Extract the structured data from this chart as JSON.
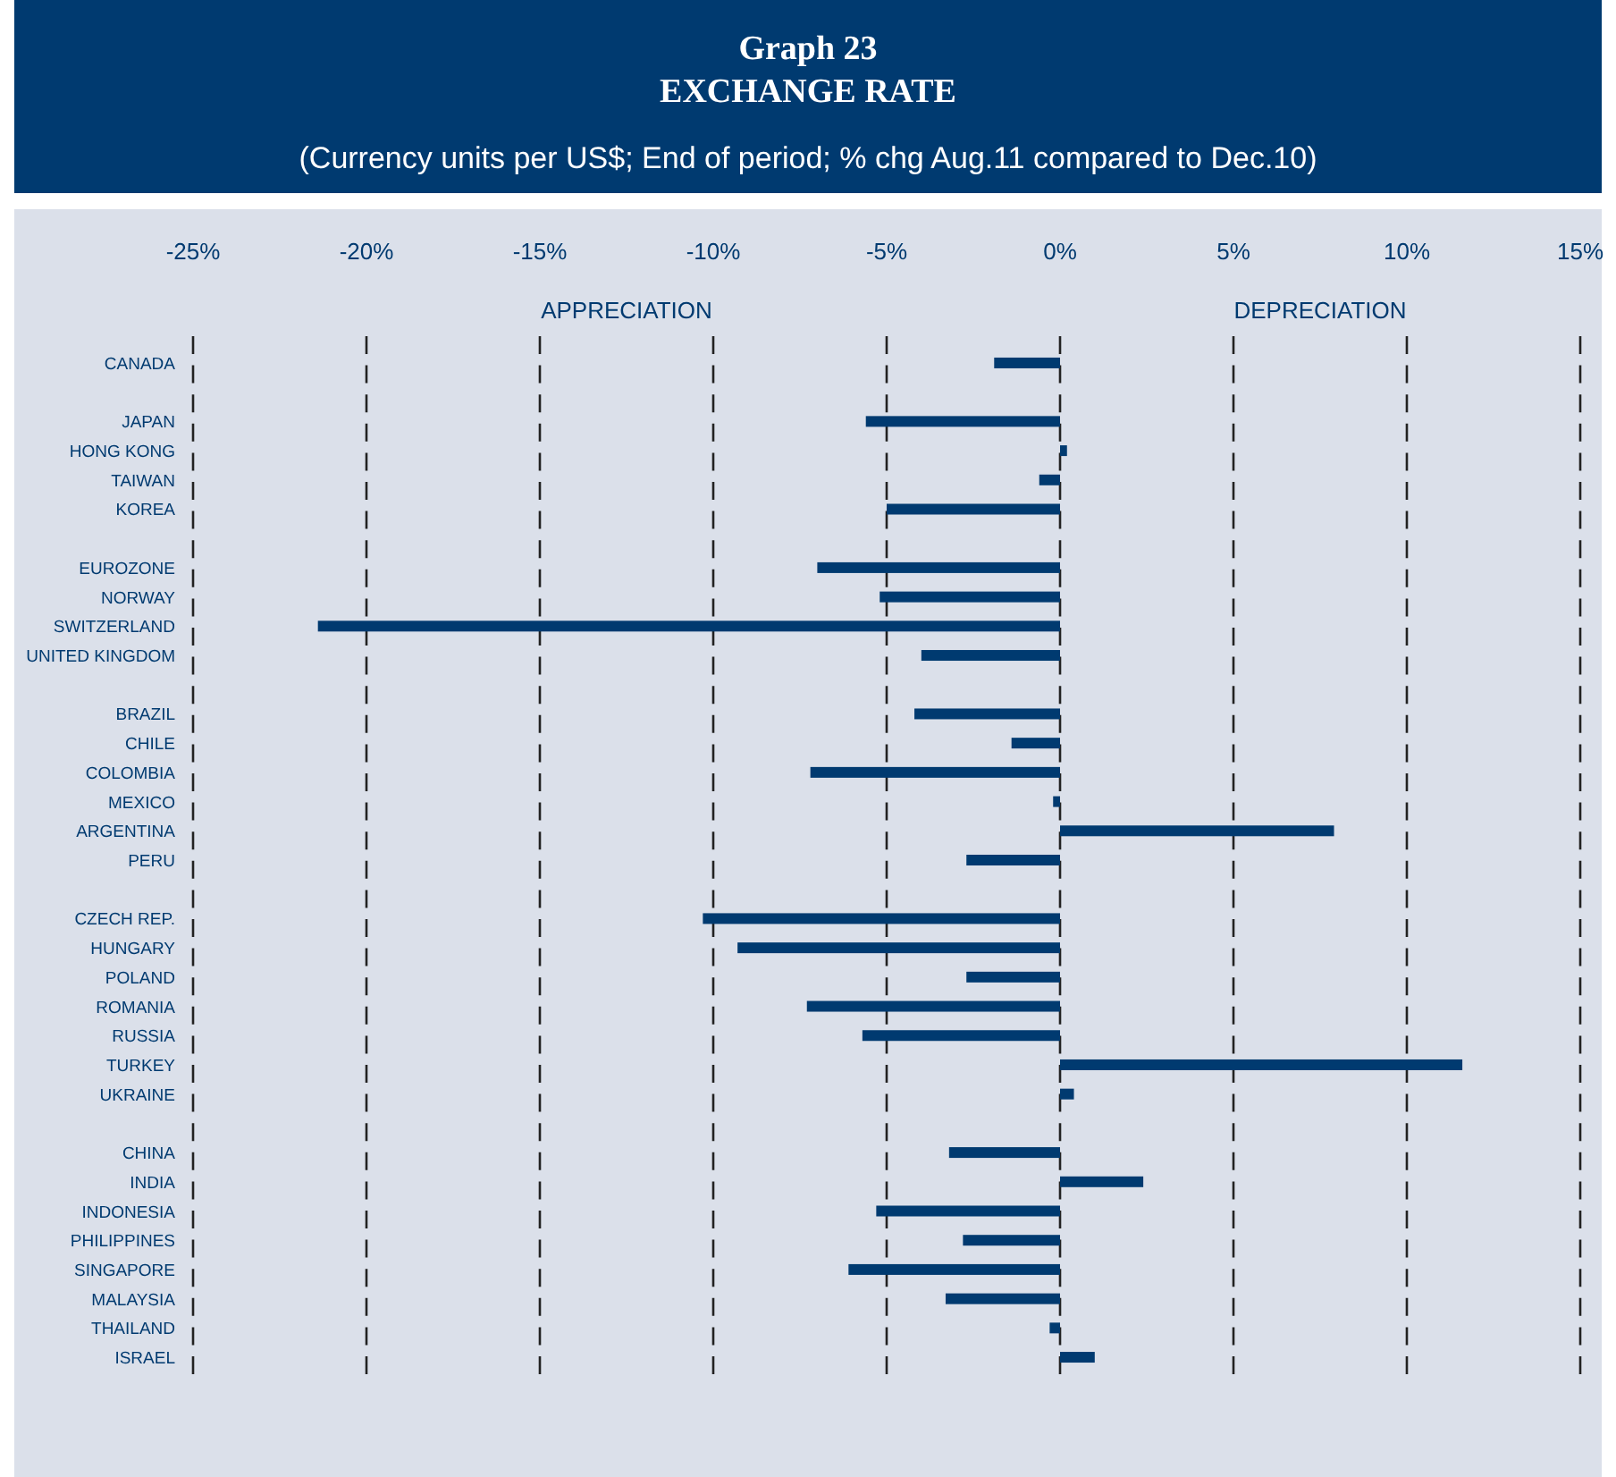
{
  "chart_data": {
    "type": "bar",
    "orientation": "horizontal",
    "title": "Graph 23\nEXCHANGE RATE",
    "subtitle": "(Currency units per  US$; End of period; % chg Aug.11 compared to Dec.10)",
    "categories": [
      "CANADA",
      null,
      "JAPAN",
      "HONG KONG",
      "TAIWAN",
      "KOREA",
      null,
      "EUROZONE",
      "NORWAY",
      "SWITZERLAND",
      "UNITED KINGDOM",
      null,
      "BRAZIL",
      "CHILE",
      "COLOMBIA",
      "MEXICO",
      "ARGENTINA",
      "PERU",
      null,
      "CZECH REP.",
      "HUNGARY",
      "POLAND",
      "ROMANIA",
      "RUSSIA",
      "TURKEY",
      "UKRAINE",
      null,
      "CHINA",
      "INDIA",
      "INDONESIA",
      "PHILIPPINES",
      "SINGAPORE",
      "MALAYSIA",
      "THAILAND",
      "ISRAEL"
    ],
    "values": [
      -1.9,
      null,
      -5.6,
      0.2,
      -0.6,
      -5.0,
      null,
      -7.0,
      -5.2,
      -21.4,
      -4.0,
      null,
      -4.2,
      -1.4,
      -7.2,
      -0.2,
      7.9,
      -2.7,
      null,
      -10.3,
      -9.3,
      -2.7,
      -7.3,
      -5.7,
      11.6,
      0.4,
      null,
      -3.2,
      2.4,
      -5.3,
      -2.8,
      -6.1,
      -3.3,
      -0.3,
      1.0
    ],
    "color": "#003a70",
    "xlim": [
      -25,
      15
    ],
    "xticks": [
      {
        "value": -25,
        "label": "-25%"
      },
      {
        "value": -20,
        "label": "-20%"
      },
      {
        "value": -15,
        "label": "-15%"
      },
      {
        "value": -10,
        "label": "-10%"
      },
      {
        "value": -5,
        "label": "-5%"
      },
      {
        "value": 0,
        "label": "0%"
      },
      {
        "value": 5,
        "label": "5%"
      },
      {
        "value": 10,
        "label": "10%"
      },
      {
        "value": 15,
        "label": "15%"
      }
    ],
    "grid": "x",
    "annotations": [
      "APPRECIATION",
      "DEPRECIATION"
    ]
  }
}
